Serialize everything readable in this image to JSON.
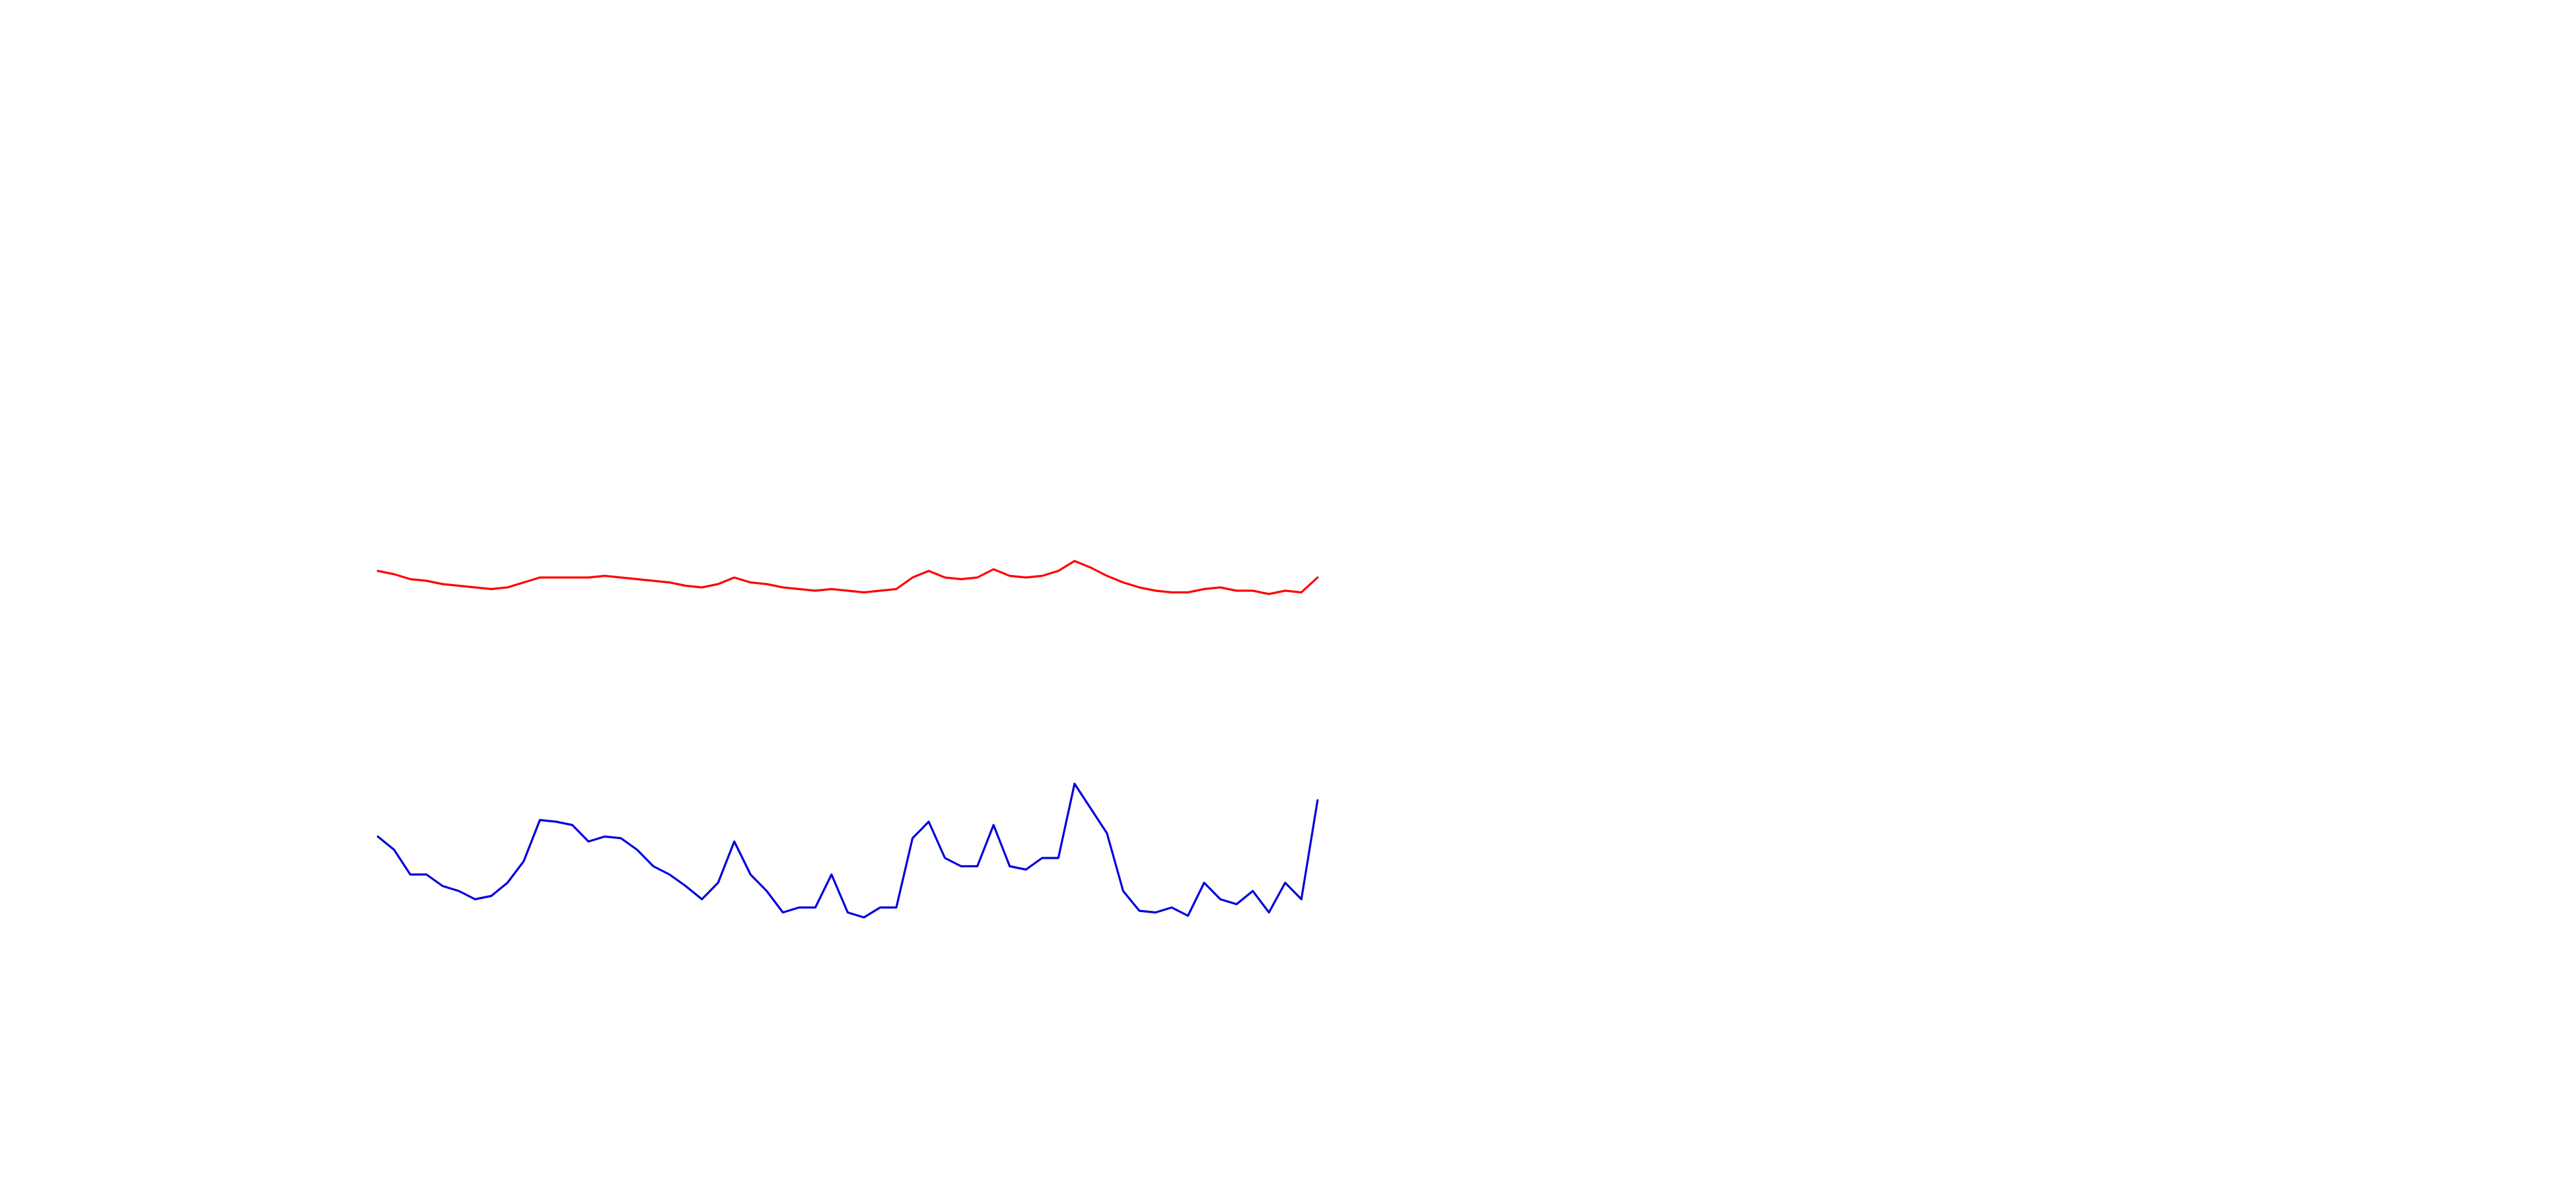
{
  "chart_data": {
    "type": "line",
    "x": [
      0,
      1,
      2,
      3,
      4,
      5,
      6,
      7,
      8,
      9,
      10,
      11,
      12,
      13,
      14,
      15,
      16,
      17,
      18,
      19,
      20,
      21,
      22,
      23,
      24,
      25,
      26,
      27,
      28,
      29,
      30,
      31,
      32,
      33,
      34,
      35,
      36,
      37,
      38,
      39,
      40,
      41,
      42,
      43,
      44,
      45,
      46,
      47,
      48,
      49,
      50,
      51,
      52,
      53,
      54,
      55,
      56,
      57,
      58
    ],
    "xlim": [
      0,
      58
    ],
    "ylim": [
      0,
      720
    ],
    "series": [
      {
        "color": "#ff0000",
        "values": [
          374,
          372,
          369,
          368,
          366,
          365,
          364,
          363,
          364,
          367,
          370,
          370,
          370,
          370,
          371,
          370,
          369,
          368,
          367,
          365,
          364,
          366,
          370,
          367,
          366,
          364,
          363,
          362,
          363,
          362,
          361,
          362,
          363,
          370,
          374,
          370,
          369,
          370,
          375,
          371,
          370,
          371,
          374,
          380,
          376,
          371,
          367,
          364,
          362,
          361,
          361,
          363,
          364,
          362,
          362,
          360,
          362,
          361,
          370
        ]
      },
      {
        "color": "#0000dd",
        "values": [
          213,
          205,
          190,
          190,
          183,
          180,
          175,
          177,
          185,
          198,
          223,
          222,
          220,
          210,
          213,
          212,
          205,
          195,
          190,
          183,
          175,
          185,
          210,
          190,
          180,
          167,
          170,
          170,
          190,
          167,
          164,
          170,
          170,
          212,
          222,
          200,
          195,
          195,
          220,
          195,
          193,
          200,
          200,
          245,
          230,
          215,
          180,
          168,
          167,
          170,
          165,
          185,
          175,
          172,
          180,
          167,
          185,
          175,
          235
        ]
      }
    ]
  }
}
